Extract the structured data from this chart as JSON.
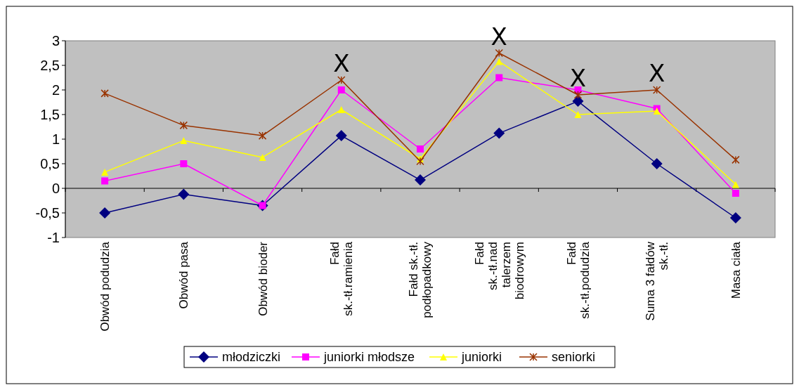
{
  "chart_data": {
    "type": "line",
    "categories": [
      "Obwód podudzia",
      "Obwód pasa",
      "Obwód bioder",
      "Fałd sk.-tł.ramienia",
      "Fałd sk.-tł. podłopadkowy",
      "Fałd sk.-tł.nad talerzem biodrowym",
      "Fałd sk.-tł.podudzia",
      "Suma 3 fałdów sk.-tł.",
      "Masa ciała"
    ],
    "series": [
      {
        "name": "młodziczki",
        "color": "#000080",
        "marker": "diamond",
        "values": [
          -0.5,
          -0.12,
          -0.35,
          1.07,
          0.17,
          1.12,
          1.77,
          0.5,
          -0.6
        ]
      },
      {
        "name": "juniorki młodsze",
        "color": "#ff00ff",
        "marker": "square",
        "values": [
          0.15,
          0.5,
          -0.35,
          2.0,
          0.8,
          2.25,
          2.0,
          1.62,
          -0.1
        ]
      },
      {
        "name": "juniorki",
        "color": "#ffff00",
        "marker": "triangle",
        "values": [
          0.33,
          0.97,
          0.63,
          1.6,
          0.6,
          2.58,
          1.5,
          1.57,
          0.08
        ]
      },
      {
        "name": "seniorki",
        "color": "#993300",
        "marker": "cross",
        "values": [
          1.93,
          1.28,
          1.07,
          2.2,
          0.55,
          2.75,
          1.9,
          2.0,
          0.58
        ]
      }
    ],
    "ylim": [
      -1,
      3
    ],
    "yticks": [
      -1,
      {
        "value": -0.5,
        "label": "-0,5"
      },
      0,
      {
        "value": 0.5,
        "label": "0,5"
      },
      1,
      {
        "value": 1.5,
        "label": "1,5"
      },
      2,
      {
        "value": 2.5,
        "label": "2,5"
      },
      3
    ],
    "annotations": [
      {
        "text": "X",
        "x": "Fałd sk.-tł.ramienia",
        "y": 2.2
      },
      {
        "text": "X",
        "x": "Fałd sk.-tł.nad talerzem biodrowym",
        "y": 2.75
      },
      {
        "text": "X",
        "x": "Fałd sk.-tł.podudzia",
        "y": 1.9
      },
      {
        "text": "X",
        "x": "Suma 3 fałdów sk.-tł.",
        "y": 2.0
      }
    ],
    "legend": "bottom"
  }
}
